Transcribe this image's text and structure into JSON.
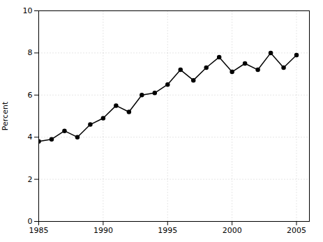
{
  "chart_data": {
    "type": "line",
    "x": [
      1985,
      1986,
      1987,
      1988,
      1989,
      1990,
      1991,
      1992,
      1993,
      1994,
      1995,
      1996,
      1997,
      1998,
      1999,
      2000,
      2001,
      2002,
      2003,
      2004,
      2005
    ],
    "values": [
      3.8,
      3.9,
      4.3,
      4.0,
      4.6,
      4.9,
      5.5,
      5.2,
      6.0,
      6.1,
      6.5,
      7.2,
      6.7,
      7.3,
      7.8,
      7.1,
      7.5,
      7.2,
      8.0,
      7.3,
      7.9
    ],
    "ylabel": "Percent",
    "xlim": [
      1985,
      2006
    ],
    "ylim": [
      0,
      10
    ],
    "xticks": [
      1985,
      1990,
      1995,
      2000,
      2005
    ],
    "yticks": [
      0,
      2,
      4,
      6,
      8,
      10
    ],
    "color": "#000000",
    "marker": "circle",
    "grid": true
  }
}
